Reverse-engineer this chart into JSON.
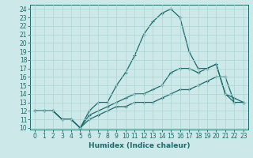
{
  "title": "",
  "xlabel": "Humidex (Indice chaleur)",
  "bg_color": "#cce8e8",
  "line_color": "#1a6b6b",
  "grid_color": "#aad4d4",
  "xlim": [
    -0.5,
    23.5
  ],
  "ylim": [
    9.8,
    24.5
  ],
  "xticks": [
    0,
    1,
    2,
    3,
    4,
    5,
    6,
    7,
    8,
    9,
    10,
    11,
    12,
    13,
    14,
    15,
    16,
    17,
    18,
    19,
    20,
    21,
    22,
    23
  ],
  "yticks": [
    10,
    11,
    12,
    13,
    14,
    15,
    16,
    17,
    18,
    19,
    20,
    21,
    22,
    23,
    24
  ],
  "line1_x": [
    0,
    1,
    2,
    3,
    4,
    5,
    6,
    7,
    8,
    9,
    10,
    11,
    12,
    13,
    14,
    15,
    16,
    17,
    18,
    19,
    20,
    21,
    22,
    23
  ],
  "line1_y": [
    12,
    12,
    12,
    11,
    11,
    10,
    12,
    13,
    13,
    15,
    16.5,
    18.5,
    21,
    22.5,
    23.5,
    24,
    23,
    19,
    17,
    17,
    17.5,
    14,
    13,
    13
  ],
  "line2_x": [
    0,
    1,
    2,
    3,
    4,
    5,
    6,
    7,
    8,
    9,
    10,
    11,
    12,
    13,
    14,
    15,
    16,
    17,
    18,
    19,
    20,
    21,
    22,
    23
  ],
  "line2_y": [
    12,
    12,
    12,
    11,
    11,
    10,
    11.5,
    12,
    12.5,
    13,
    13.5,
    14,
    14,
    14.5,
    15,
    16.5,
    17,
    17,
    16.5,
    17,
    17.5,
    14,
    13.5,
    13
  ],
  "line3_x": [
    0,
    1,
    2,
    3,
    4,
    5,
    6,
    7,
    8,
    9,
    10,
    11,
    12,
    13,
    14,
    15,
    16,
    17,
    18,
    19,
    20,
    21,
    22,
    23
  ],
  "line3_y": [
    12,
    12,
    12,
    11,
    11,
    10,
    11,
    11.5,
    12,
    12.5,
    12.5,
    13,
    13,
    13,
    13.5,
    14,
    14.5,
    14.5,
    15,
    15.5,
    16,
    16,
    13,
    13
  ],
  "tick_fontsize": 5.5,
  "xlabel_fontsize": 6.5,
  "marker_size": 3,
  "line_width": 0.9
}
